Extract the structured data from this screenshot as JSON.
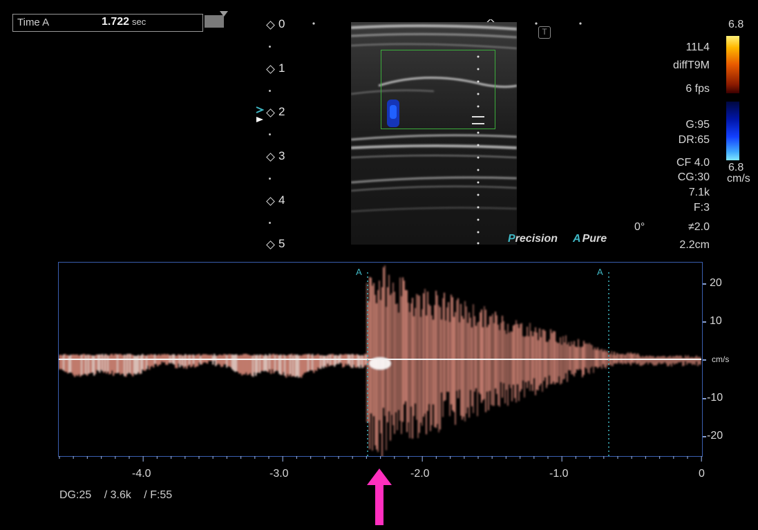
{
  "time_readout": {
    "label": "Time A",
    "value": "1.722",
    "unit": "sec"
  },
  "depth_scale": {
    "labels": [
      "0",
      "1",
      "2",
      "3",
      "4",
      "5"
    ]
  },
  "icons": {
    "transducer_icon": "T",
    "focus_marker": "focus-arrow-icon"
  },
  "probe_params": {
    "probe": "11L4",
    "preset": "diffT9M",
    "frame_rate": "6 fps",
    "gain": "G:95",
    "dynamic_range": "DR:65",
    "color_frequency": "CF 4.0",
    "color_gain": "CG:30",
    "prf": "7.1k",
    "filter": "F:3",
    "angle": "0°",
    "angle_correction": "≠2.0",
    "sample_depth": "2.2cm"
  },
  "color_scale": {
    "top_value": "6.8",
    "bottom_value": "6.8",
    "unit": "cm/s"
  },
  "branding": {
    "precision_prefix": "P",
    "precision_rest": "recision",
    "pure_prefix": "A",
    "pure_rest": "Pure"
  },
  "doppler": {
    "y_ticks": [
      20,
      10,
      -10,
      -20
    ],
    "y_unit": "cm/s",
    "x_ticks": [
      "-4.0",
      "-3.0",
      "-2.0",
      "-1.0",
      "0"
    ],
    "marker_label": "A"
  },
  "footer": {
    "doppler_gain": "DG:25",
    "doppler_prf": "/ 3.6k",
    "doppler_filter": "/ F:55"
  },
  "colors": {
    "accent_teal": "#3fb7c4",
    "doppler_trace": "#d9897a",
    "frame_blue": "#3a5fb0",
    "roi_green": "#3cae3c",
    "arrow_pink": "#ff2fbf"
  }
}
